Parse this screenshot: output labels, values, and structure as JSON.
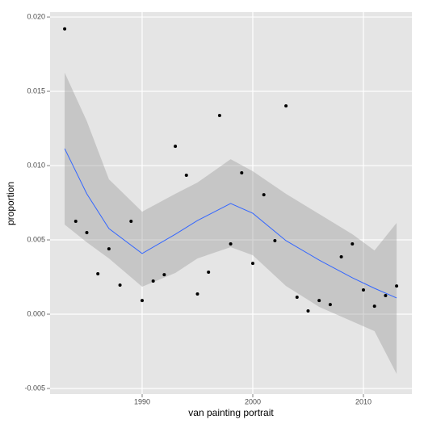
{
  "chart_data": {
    "type": "scatter",
    "x_label": "van painting portrait",
    "y_label": "proportion",
    "x": [
      1983,
      1984,
      1985,
      1986,
      1987,
      1988,
      1989,
      1990,
      1991,
      1992,
      1993,
      1994,
      1995,
      1996,
      1997,
      1998,
      1999,
      2000,
      2001,
      2002,
      2003,
      2004,
      2005,
      2006,
      2007,
      2008,
      2009,
      2010,
      2011,
      2012,
      2013
    ],
    "values": [
      0.0192,
      0.00625,
      0.00549,
      0.00272,
      0.0044,
      0.00196,
      0.00625,
      0.00092,
      0.00223,
      0.00266,
      0.0113,
      0.00935,
      0.00136,
      0.00283,
      0.01337,
      0.00473,
      0.00951,
      0.00342,
      0.00804,
      0.00495,
      0.01402,
      0.00114,
      0.00022,
      0.00092,
      0.00065,
      0.00386,
      0.00473,
      0.00163,
      0.00054,
      0.00125,
      0.0019
    ],
    "color": "#000000",
    "smooth": {
      "color": "#3366ff",
      "band_color": "#999999",
      "x": [
        1983,
        1985,
        1987,
        1990,
        1993,
        1995,
        1998,
        2000,
        2003,
        2006,
        2009,
        2011,
        2013
      ],
      "values": [
        0.01114,
        0.0081,
        0.00576,
        0.00408,
        0.00538,
        0.0063,
        0.00745,
        0.00679,
        0.00495,
        0.00364,
        0.00245,
        0.00174,
        0.00109
      ],
      "upper": [
        0.01625,
        0.01299,
        0.00908,
        0.0069,
        0.0081,
        0.00886,
        0.01043,
        0.00962,
        0.0081,
        0.00674,
        0.00538,
        0.00429,
        0.00614
      ],
      "lower": [
        0.00603,
        0.00484,
        0.00375,
        0.00185,
        0.00277,
        0.00375,
        0.00451,
        0.00397,
        0.0019,
        0.00049,
        -0.00049,
        -0.00114,
        -0.00402
      ]
    },
    "xlim": [
      1981.68,
      2014.38
    ],
    "xticks": [
      1990,
      2000,
      2010
    ],
    "ylim": [
      -0.00538,
      0.02033
    ],
    "yticks": [
      {
        "value": -0.005,
        "label": "-0.005"
      },
      {
        "value": 0,
        "label": "0.000"
      },
      {
        "value": 0.005,
        "label": "0.005"
      },
      {
        "value": 0.01,
        "label": "0.010"
      },
      {
        "value": 0.015,
        "label": "0.015"
      },
      {
        "value": 0.02,
        "label": "0.020"
      }
    ],
    "grid": true
  }
}
